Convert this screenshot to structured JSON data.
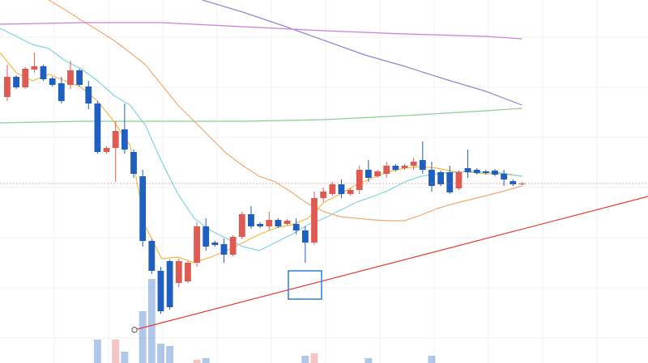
{
  "chart_data": {
    "type": "candlestick",
    "xlim": [
      -0.8,
      70.95
    ],
    "ylim": [
      0,
      449
    ],
    "up_color": "#e05a52",
    "down_color": "#1f5fbf",
    "open": [
      329,
      354,
      341,
      363,
      367,
      352,
      346,
      344,
      362,
      342,
      321,
      261,
      266,
      289,
      261,
      231,
      151,
      114,
      126,
      99,
      101,
      124,
      169,
      149,
      147,
      134,
      156,
      184,
      172,
      169,
      177,
      172,
      172,
      164,
      149,
      204,
      209,
      221,
      209,
      214,
      239,
      231,
      234,
      244,
      241,
      244,
      251,
      239,
      236,
      236,
      216,
      241,
      239,
      237,
      238,
      234,
      225,
      221
    ],
    "high": [
      369,
      356,
      366,
      384,
      369,
      354,
      354,
      374,
      364,
      349,
      324,
      268,
      299,
      321,
      264,
      239,
      153,
      119,
      128,
      129,
      126,
      174,
      179,
      151,
      154,
      158,
      187,
      194,
      174,
      187,
      179,
      178,
      179,
      169,
      212,
      217,
      224,
      227,
      216,
      244,
      251,
      239,
      249,
      246,
      246,
      254,
      274,
      249,
      238,
      244,
      238,
      264,
      241,
      239,
      240,
      239,
      227,
      224
    ],
    "low": [
      324,
      339,
      339,
      359,
      349,
      342,
      321,
      339,
      342,
      314,
      259,
      259,
      224,
      259,
      229,
      144,
      110,
      61,
      66,
      94,
      99,
      119,
      139,
      144,
      124,
      132,
      153,
      166,
      167,
      164,
      167,
      170,
      159,
      124,
      146,
      199,
      207,
      204,
      207,
      209,
      224,
      229,
      229,
      237,
      239,
      239,
      234,
      212,
      219,
      209,
      214,
      229,
      233,
      233,
      231,
      219,
      219,
      220
    ],
    "close": [
      354,
      341,
      364,
      367,
      351,
      344,
      324,
      362,
      344,
      321,
      261,
      266,
      287,
      264,
      234,
      151,
      114,
      64,
      69,
      126,
      124,
      169,
      144,
      146,
      134,
      156,
      184,
      169,
      169,
      177,
      169,
      176,
      164,
      149,
      204,
      212,
      221,
      209,
      214,
      239,
      229,
      237,
      244,
      239,
      244,
      249,
      239,
      219,
      221,
      211,
      236,
      236,
      235,
      235,
      233,
      227,
      221,
      222
    ],
    "volume": [
      0,
      0,
      0,
      0,
      0,
      0,
      0,
      0,
      0,
      0,
      29,
      0,
      29,
      14,
      0,
      64,
      104,
      24,
      21,
      0,
      0,
      4,
      6,
      0,
      0,
      0,
      0,
      0,
      0,
      0,
      0,
      0,
      0,
      9,
      12,
      0,
      0,
      0,
      0,
      0,
      6,
      0,
      0,
      0,
      0,
      0,
      0,
      9,
      0,
      0,
      0,
      0,
      0,
      0,
      0,
      0,
      0,
      0
    ],
    "series": [
      {
        "color": "#f5b942",
        "x": [
          -0.8,
          1.0,
          2.8,
          4.6,
          6.4,
          8.2,
          10.0,
          11.8,
          13.6,
          15.3,
          17.1,
          18.9,
          20.7,
          22.5,
          24.3,
          26.1,
          27.9,
          29.7,
          31.5,
          33.3,
          35.1,
          36.9,
          38.7,
          40.5,
          42.3,
          44.0,
          45.8,
          47.6,
          49.4,
          51.2,
          53.0,
          54.8,
          57.0
        ],
        "values": [
          384,
          359,
          349,
          357,
          349,
          341,
          324,
          299,
          269,
          169,
          129,
          131,
          124,
          131,
          139,
          149,
          159,
          167,
          171,
          179,
          199,
          209,
          221,
          229,
          237,
          241,
          243,
          241,
          237,
          236,
          234,
          234,
          231
        ]
      },
      {
        "color": "#7fd3e3",
        "x": [
          -0.8,
          1.0,
          2.8,
          4.6,
          6.4,
          8.2,
          10.0,
          11.8,
          13.6,
          15.3,
          17.1,
          18.9,
          20.7,
          22.5,
          24.3,
          26.1,
          27.9,
          29.7,
          31.5,
          33.3,
          35.1,
          36.9,
          38.7,
          40.5,
          42.3,
          44.0,
          45.8,
          47.6,
          49.4,
          51.2,
          53.0,
          54.8,
          57.0
        ],
        "values": [
          414,
          404,
          394,
          389,
          374,
          364,
          349,
          331,
          319,
          294,
          249,
          209,
          179,
          164,
          154,
          144,
          139,
          149,
          159,
          171,
          179,
          189,
          199,
          206,
          214,
          224,
          231,
          234,
          236,
          237,
          236,
          235,
          231
        ]
      },
      {
        "color": "#f4a870",
        "x": [
          4.6,
          6.4,
          8.2,
          10.0,
          11.8,
          13.6,
          15.3,
          17.1,
          18.9,
          20.7,
          22.5,
          24.3,
          26.1,
          27.9,
          29.7,
          31.5,
          33.3,
          35.1,
          36.9,
          38.7,
          40.5,
          42.3,
          44.0,
          45.8,
          47.6,
          49.4,
          51.2,
          53.0,
          54.8,
          57.0
        ],
        "values": [
          449,
          437,
          424,
          412,
          399,
          384,
          369,
          344,
          319,
          299,
          279,
          259,
          244,
          231,
          224,
          211,
          197,
          187,
          181,
          179,
          177,
          176,
          176,
          183,
          191,
          197,
          202,
          207,
          212,
          219
        ]
      },
      {
        "color": "#9b7fd4",
        "x": [
          21.6,
          26.1,
          30.6,
          35.1,
          39.6,
          44.0,
          48.5,
          53.0,
          57.0
        ],
        "values": [
          449,
          434,
          417,
          399,
          381,
          367,
          351,
          336,
          319
        ]
      },
      {
        "color": "#c77ddd",
        "x": [
          -0.8,
          8.2,
          17.1,
          26.1,
          35.1,
          44.0,
          53.0,
          57.0
        ],
        "values": [
          419,
          421,
          421,
          416,
          411,
          407,
          404,
          401
        ]
      },
      {
        "color": "#8ccf8c",
        "x": [
          -0.8,
          8.2,
          17.1,
          26.1,
          35.1,
          44.0,
          53.0,
          57.0
        ],
        "values": [
          297,
          299,
          299,
          299,
          301,
          306,
          312,
          315
        ]
      }
    ]
  }
}
